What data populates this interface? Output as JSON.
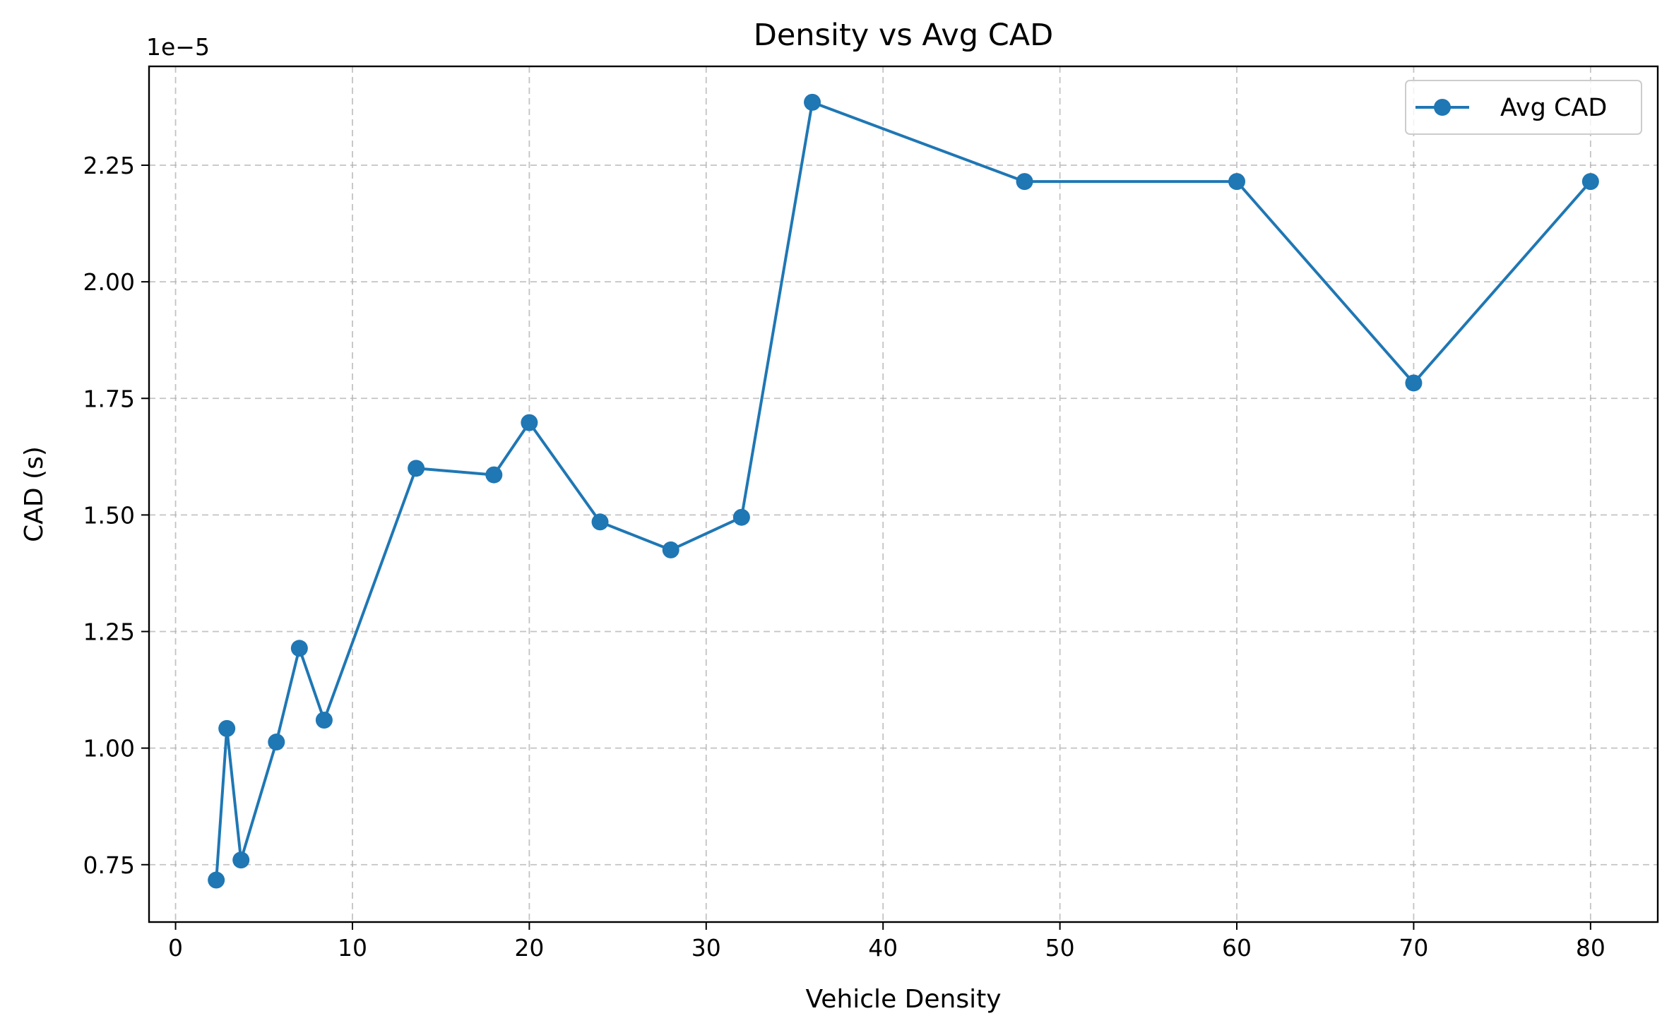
{
  "chart_data": {
    "type": "line",
    "title": "Density vs Avg CAD",
    "xlabel": "Vehicle Density",
    "ylabel": "CAD (s)",
    "y_offset_label": "1e−5",
    "xlim": [
      -1.5,
      83.8
    ],
    "ylim": [
      0.627,
      2.462
    ],
    "x_ticks": [
      0,
      10,
      20,
      30,
      40,
      50,
      60,
      70,
      80
    ],
    "x_tick_labels": [
      "0",
      "10",
      "20",
      "30",
      "40",
      "50",
      "60",
      "70",
      "80"
    ],
    "y_ticks": [
      0.75,
      1.0,
      1.25,
      1.5,
      1.75,
      2.0,
      2.25
    ],
    "y_tick_labels": [
      "0.75",
      "1.00",
      "1.25",
      "1.50",
      "1.75",
      "2.00",
      "2.25"
    ],
    "grid": true,
    "legend_position": "top-right",
    "series": [
      {
        "name": "Avg CAD",
        "color": "#1f77b4",
        "marker": "circle",
        "x": [
          2.3,
          2.9,
          3.7,
          5.7,
          7.0,
          8.4,
          13.6,
          18.0,
          20.0,
          24.0,
          28.0,
          32.0,
          36.0,
          48.0,
          60.0,
          70.0,
          80.0
        ],
        "y": [
          0.717,
          1.042,
          0.76,
          1.013,
          1.214,
          1.06,
          1.6,
          1.586,
          1.698,
          1.485,
          1.425,
          1.495,
          2.385,
          2.215,
          2.215,
          1.783,
          2.215
        ]
      }
    ]
  }
}
